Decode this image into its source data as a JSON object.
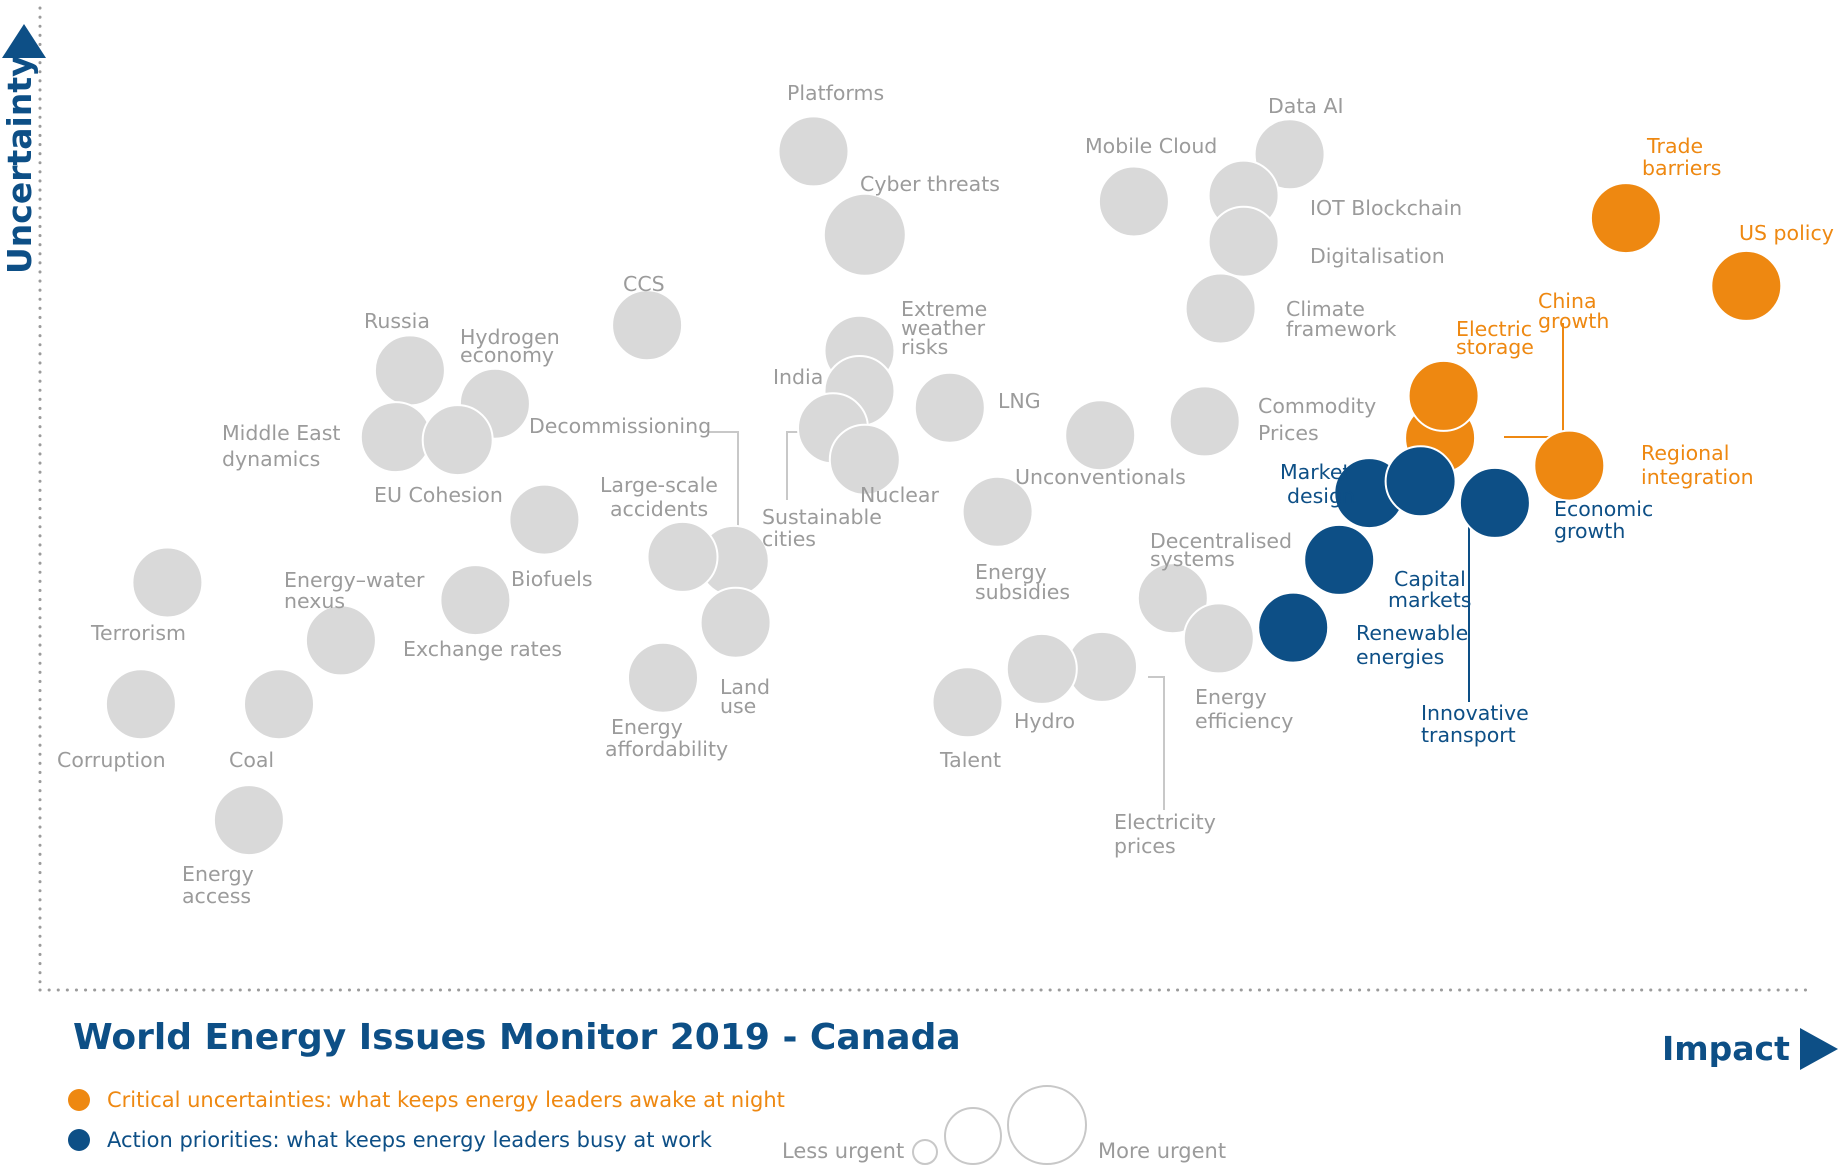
{
  "title": "World Energy Issues Monitor 2019 - Canada",
  "colors": {
    "neutral": "#d9d9d9",
    "neutral_text": "#9b9b9b",
    "critical": "#ee8811",
    "action": "#0d4f86",
    "axis": "#0d4f86",
    "leader": "#c8c8c8"
  },
  "chart_data": {
    "type": "scatter",
    "subtype": "bubble",
    "title": "World Energy Issues Monitor 2019 - Canada",
    "xlabel": "Impact",
    "ylabel": "Uncertainty",
    "xlim": [
      0,
      100
    ],
    "ylim": [
      0,
      100
    ],
    "grid": false,
    "legend_position": "bottom-left",
    "series": [
      {
        "name": "Critical uncertainties: what keeps energy leaders awake at night",
        "category": "critical",
        "points": [
          {
            "label": "Trade barriers",
            "x": 89.6,
            "y": 78.6,
            "size": 2
          },
          {
            "label": "US policy",
            "x": 96.4,
            "y": 71.7,
            "size": 2
          },
          {
            "label": "China growth",
            "x": 79.1,
            "y": 56.2,
            "size": 2
          },
          {
            "label": "Electric storage",
            "x": 79.3,
            "y": 60.5,
            "size": 2
          },
          {
            "label": "Regional integration",
            "x": 86.4,
            "y": 53.4,
            "size": 2
          }
        ]
      },
      {
        "name": "Action priorities: what keeps energy leaders busy at work",
        "category": "action",
        "points": [
          {
            "label": "Market design",
            "x": 75.1,
            "y": 50.6,
            "size": 2
          },
          {
            "label": "Innovative transport",
            "x": 78.0,
            "y": 51.8,
            "size": 2
          },
          {
            "label": "Economic growth",
            "x": 82.2,
            "y": 49.6,
            "size": 2
          },
          {
            "label": "Capital markets",
            "x": 73.4,
            "y": 43.8,
            "size": 2
          },
          {
            "label": "Renewable energies",
            "x": 70.8,
            "y": 36.9,
            "size": 2
          }
        ]
      },
      {
        "name": "Other issues",
        "category": "neutral",
        "points": [
          {
            "label": "Platforms",
            "x": 43.7,
            "y": 85.4,
            "size": 2
          },
          {
            "label": "Cyber threats",
            "x": 46.6,
            "y": 76.9,
            "size": 3
          },
          {
            "label": "Mobile Cloud",
            "x": 61.8,
            "y": 80.3,
            "size": 2
          },
          {
            "label": "Data AI",
            "x": 70.6,
            "y": 85.1,
            "size": 2
          },
          {
            "label": "IOT Blockchain",
            "x": 68.0,
            "y": 80.9,
            "size": 2
          },
          {
            "label": "Digitalisation",
            "x": 68.0,
            "y": 76.2,
            "size": 2
          },
          {
            "label": "Climate framework",
            "x": 66.7,
            "y": 69.4,
            "size": 2
          },
          {
            "label": "CCS",
            "x": 34.3,
            "y": 67.7,
            "size": 2
          },
          {
            "label": "Russia",
            "x": 20.9,
            "y": 63.1,
            "size": 2
          },
          {
            "label": "Hydrogen economy",
            "x": 25.7,
            "y": 59.7,
            "size": 2
          },
          {
            "label": "Middle East dynamics",
            "x": 20.1,
            "y": 56.3,
            "size": 2
          },
          {
            "label": "EU Cohesion",
            "x": 23.6,
            "y": 56.0,
            "size": 2
          },
          {
            "label": "Extreme weather risks",
            "x": 46.3,
            "y": 65.1,
            "size": 2
          },
          {
            "label": "India",
            "x": 46.3,
            "y": 61.0,
            "size": 2
          },
          {
            "label": "Sustainable cities",
            "x": 44.8,
            "y": 57.2,
            "size": 2
          },
          {
            "label": "Nuclear",
            "x": 46.6,
            "y": 54.0,
            "size": 2
          },
          {
            "label": "LNG",
            "x": 51.4,
            "y": 59.3,
            "size": 2
          },
          {
            "label": "Unconventionals",
            "x": 59.9,
            "y": 56.5,
            "size": 2
          },
          {
            "label": "Commodity Prices",
            "x": 65.8,
            "y": 57.9,
            "size": 2
          },
          {
            "label": "Decommissioning",
            "x": 39.2,
            "y": 43.7,
            "size": 2
          },
          {
            "label": "Large-scale accidents",
            "x": 36.3,
            "y": 44.1,
            "size": 2
          },
          {
            "label": "Land use",
            "x": 39.3,
            "y": 37.4,
            "size": 2
          },
          {
            "label": "Energy affordability",
            "x": 35.2,
            "y": 31.8,
            "size": 2
          },
          {
            "label": "Biofuels",
            "x": 28.5,
            "y": 47.9,
            "size": 2
          },
          {
            "label": "Exchange rates",
            "x": 24.6,
            "y": 39.7,
            "size": 2
          },
          {
            "label": "Energy–water nexus",
            "x": 17.0,
            "y": 35.6,
            "size": 2
          },
          {
            "label": "Terrorism",
            "x": 7.2,
            "y": 41.5,
            "size": 2
          },
          {
            "label": "Corruption",
            "x": 5.7,
            "y": 29.1,
            "size": 2
          },
          {
            "label": "Coal",
            "x": 13.5,
            "y": 29.1,
            "size": 2
          },
          {
            "label": "Energy access",
            "x": 11.8,
            "y": 17.3,
            "size": 2
          },
          {
            "label": "Energy subsidies",
            "x": 54.1,
            "y": 48.7,
            "size": 2
          },
          {
            "label": "Decentralised systems",
            "x": 64.0,
            "y": 39.9,
            "size": 2
          },
          {
            "label": "Energy efficiency",
            "x": 66.6,
            "y": 35.8,
            "size": 2
          },
          {
            "label": "Electricity prices",
            "x": 60.0,
            "y": 32.9,
            "size": 2
          },
          {
            "label": "Hydro",
            "x": 56.6,
            "y": 32.7,
            "size": 2
          },
          {
            "label": "Talent",
            "x": 52.4,
            "y": 29.3,
            "size": 2
          }
        ]
      }
    ]
  },
  "legend": {
    "critical": "Critical uncertainties: what keeps energy leaders awake at night",
    "action": "Action priorities: what keeps energy leaders busy at work",
    "size_less": "Less urgent",
    "size_more": "More urgent"
  }
}
